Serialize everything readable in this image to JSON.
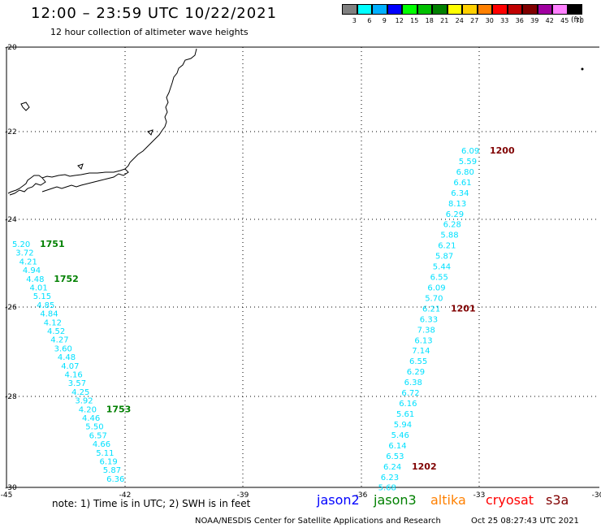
{
  "header": {
    "title": "12:00 – 23:59 UTC 10/22/2021",
    "subtitle": "12 hour collection of altimeter wave heights"
  },
  "colorbar": {
    "bins": [
      {
        "label": "3",
        "color": "#808080"
      },
      {
        "label": "6",
        "color": "#00ffff"
      },
      {
        "label": "9",
        "color": "#00b0ff"
      },
      {
        "label": "12",
        "color": "#0000ff"
      },
      {
        "label": "15",
        "color": "#00ff00"
      },
      {
        "label": "18",
        "color": "#00c000"
      },
      {
        "label": "21",
        "color": "#008000"
      },
      {
        "label": "24",
        "color": "#ffff00"
      },
      {
        "label": "27",
        "color": "#ffd000"
      },
      {
        "label": "30",
        "color": "#ff8000"
      },
      {
        "label": "33",
        "color": "#ff0000"
      },
      {
        "label": "36",
        "color": "#c00000"
      },
      {
        "label": "39",
        "color": "#800000"
      },
      {
        "label": "42",
        "color": "#a000a0"
      },
      {
        "label": "45",
        "color": "#ff80ff"
      },
      {
        "label": "70",
        "color": "#000000"
      }
    ],
    "units": "(ft)"
  },
  "axes": {
    "lon_ticks": [
      "-45",
      "-42",
      "-39",
      "-36",
      "-33",
      "-30"
    ],
    "lat_ticks": [
      "-20",
      "-22",
      "-24",
      "-26",
      "-28",
      "-30"
    ]
  },
  "tracks": [
    {
      "name": "left",
      "color": "#00e0ff",
      "values": [
        "5.20",
        "3.72",
        "4.21",
        "4.94",
        "4.48",
        "4.01",
        "5.15",
        "4.85",
        "4.84",
        "4.12",
        "4.52",
        "4.27",
        "3.60",
        "4.48",
        "4.07",
        "4.16",
        "3.57",
        "4.25",
        "3.92",
        "4.20",
        "4.46",
        "5.50",
        "6.57",
        "4.66",
        "5.11",
        "6.19",
        "5.87",
        "6.36"
      ],
      "times": [
        {
          "label": "1751",
          "color": "#008000",
          "index": 0
        },
        {
          "label": "1752",
          "color": "#008000",
          "index": 4
        },
        {
          "label": "1753",
          "color": "#008000",
          "index": 19
        }
      ]
    },
    {
      "name": "right",
      "color": "#00e0ff",
      "values": [
        "6.09",
        "5.59",
        "6.80",
        "6.61",
        "6.34",
        "8.13",
        "6.29",
        "6.28",
        "5.88",
        "6.21",
        "5.87",
        "5.44",
        "6.55",
        "6.09",
        "5.70",
        "6.21",
        "6.33",
        "7.38",
        "6.13",
        "7.14",
        "6.55",
        "6.29",
        "6.38",
        "6.72",
        "6.16",
        "5.61",
        "5.94",
        "5.46",
        "6.14",
        "6.53",
        "6.24",
        "6.23",
        "5.68"
      ],
      "times": [
        {
          "label": "1200",
          "color": "#800000",
          "index": 0
        },
        {
          "label": "1201",
          "color": "#800000",
          "index": 15
        },
        {
          "label": "1202",
          "color": "#800000",
          "index": 30
        }
      ]
    }
  ],
  "footer": {
    "note": "note:  1) Time is in UTC;  2) SWH is in feet",
    "satellites": [
      {
        "name": "jason2",
        "color": "#0000ff"
      },
      {
        "name": "jason3",
        "color": "#008000"
      },
      {
        "name": "altika",
        "color": "#ff8000"
      },
      {
        "name": "cryosat",
        "color": "#ff0000"
      },
      {
        "name": "s3a",
        "color": "#800000"
      }
    ],
    "credit": "NOAA/NESDIS Center for Satellite Applications and Research",
    "timestamp": "Oct 25 08:27:43 UTC 2021"
  }
}
